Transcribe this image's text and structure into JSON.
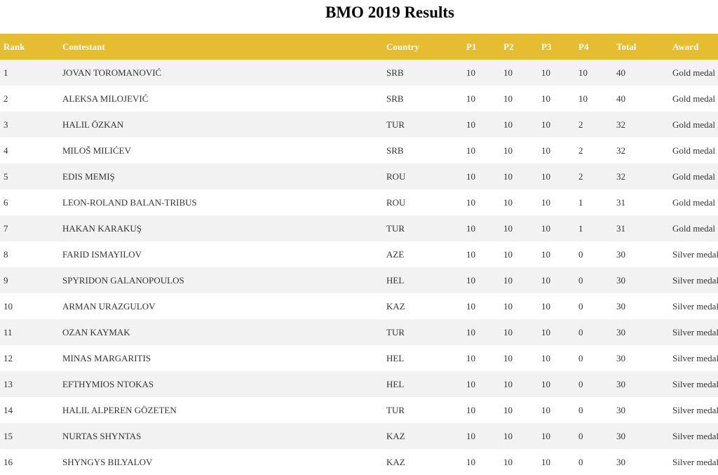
{
  "page": {
    "title": "BMO 2019 Results"
  },
  "colors": {
    "header_bg": "#e6bc30",
    "header_text": "#ffffff",
    "row_alt_bg": "#f2f2f2"
  },
  "table": {
    "headers": {
      "rank": "Rank",
      "contestant": "Contestant",
      "country": "Country",
      "p1": "P1",
      "p2": "P2",
      "p3": "P3",
      "p4": "P4",
      "total": "Total",
      "award": "Award"
    },
    "rows": [
      {
        "rank": "1",
        "contestant": "JOVAN TOROMANOVIĆ",
        "country": "SRB",
        "p1": "10",
        "p2": "10",
        "p3": "10",
        "p4": "10",
        "total": "40",
        "award": "Gold medal"
      },
      {
        "rank": "2",
        "contestant": "ALEKSA MILOJEVIĆ",
        "country": "SRB",
        "p1": "10",
        "p2": "10",
        "p3": "10",
        "p4": "10",
        "total": "40",
        "award": "Gold medal"
      },
      {
        "rank": "3",
        "contestant": "HALIL ÖZKAN",
        "country": "TUR",
        "p1": "10",
        "p2": "10",
        "p3": "10",
        "p4": "2",
        "total": "32",
        "award": "Gold medal"
      },
      {
        "rank": "4",
        "contestant": "MILOŠ MILIĆEV",
        "country": "SRB",
        "p1": "10",
        "p2": "10",
        "p3": "10",
        "p4": "2",
        "total": "32",
        "award": "Gold medal"
      },
      {
        "rank": "5",
        "contestant": "EDIS MEMIŞ",
        "country": "ROU",
        "p1": "10",
        "p2": "10",
        "p3": "10",
        "p4": "2",
        "total": "32",
        "award": "Gold medal"
      },
      {
        "rank": "6",
        "contestant": "LEON-ROLAND BALAN-TRIBUS",
        "country": "ROU",
        "p1": "10",
        "p2": "10",
        "p3": "10",
        "p4": "1",
        "total": "31",
        "award": "Gold medal"
      },
      {
        "rank": "7",
        "contestant": "HAKAN KARAKUŞ",
        "country": "TUR",
        "p1": "10",
        "p2": "10",
        "p3": "10",
        "p4": "1",
        "total": "31",
        "award": "Gold medal"
      },
      {
        "rank": "8",
        "contestant": "FARID ISMAYILOV",
        "country": "AZE",
        "p1": "10",
        "p2": "10",
        "p3": "10",
        "p4": "0",
        "total": "30",
        "award": "Silver medal"
      },
      {
        "rank": "9",
        "contestant": "SPYRIDON GALANOPOULOS",
        "country": "HEL",
        "p1": "10",
        "p2": "10",
        "p3": "10",
        "p4": "0",
        "total": "30",
        "award": "Silver medal"
      },
      {
        "rank": "10",
        "contestant": "ARMAN URAZGULOV",
        "country": "KAZ",
        "p1": "10",
        "p2": "10",
        "p3": "10",
        "p4": "0",
        "total": "30",
        "award": "Silver medal"
      },
      {
        "rank": "11",
        "contestant": "OZAN KAYMAK",
        "country": "TUR",
        "p1": "10",
        "p2": "10",
        "p3": "10",
        "p4": "0",
        "total": "30",
        "award": "Silver medal"
      },
      {
        "rank": "12",
        "contestant": "MINAS MARGARITIS",
        "country": "HEL",
        "p1": "10",
        "p2": "10",
        "p3": "10",
        "p4": "0",
        "total": "30",
        "award": "Silver medal"
      },
      {
        "rank": "13",
        "contestant": "EFTHYMIOS NTOKAS",
        "country": "HEL",
        "p1": "10",
        "p2": "10",
        "p3": "10",
        "p4": "0",
        "total": "30",
        "award": "Silver medal"
      },
      {
        "rank": "14",
        "contestant": "HALIL ALPEREN GÖZETEN",
        "country": "TUR",
        "p1": "10",
        "p2": "10",
        "p3": "10",
        "p4": "0",
        "total": "30",
        "award": "Silver medal"
      },
      {
        "rank": "15",
        "contestant": "NURTAS SHYNTAS",
        "country": "KAZ",
        "p1": "10",
        "p2": "10",
        "p3": "10",
        "p4": "0",
        "total": "30",
        "award": "Silver medal"
      },
      {
        "rank": "16",
        "contestant": "SHYNGYS BILYALOV",
        "country": "KAZ",
        "p1": "10",
        "p2": "10",
        "p3": "10",
        "p4": "0",
        "total": "30",
        "award": "Silver medal"
      }
    ]
  }
}
